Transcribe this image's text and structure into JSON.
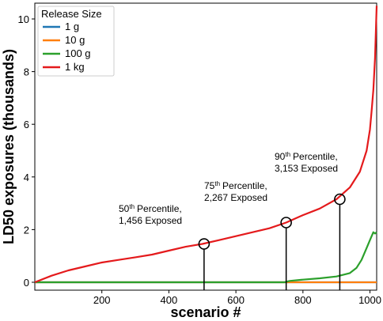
{
  "chart_data": {
    "type": "line",
    "title": "",
    "xlabel": "scenario #",
    "ylabel": "LD50 exposures (thousands)",
    "xlim": [
      0,
      1020
    ],
    "ylim": [
      -0.3,
      10.6
    ],
    "x_ticks": [
      200,
      400,
      600,
      800,
      1000
    ],
    "x_tick_labels": [
      "200",
      "400",
      "600",
      "800",
      "1000"
    ],
    "y_ticks": [
      0,
      2,
      4,
      6,
      8,
      10
    ],
    "y_tick_labels": [
      "0",
      "2",
      "4",
      "6",
      "8",
      "10"
    ],
    "grid": false,
    "legend": {
      "title": "Release Size",
      "placement": "top-left"
    },
    "series": [
      {
        "name": "1 g",
        "color": "#1f77b4",
        "x": [
          0,
          1020
        ],
        "y": [
          0,
          0
        ]
      },
      {
        "name": "10 g",
        "color": "#ff7f0e",
        "x": [
          0,
          1020
        ],
        "y": [
          0,
          0
        ]
      },
      {
        "name": "100 g",
        "color": "#2ca02c",
        "x": [
          0,
          745,
          760,
          800,
          850,
          900,
          940,
          960,
          975,
          990,
          1000,
          1010,
          1015,
          1020
        ],
        "y": [
          0,
          0,
          0.05,
          0.1,
          0.15,
          0.22,
          0.35,
          0.55,
          0.85,
          1.3,
          1.6,
          1.9,
          1.85,
          1.9
        ]
      },
      {
        "name": "1 kg",
        "color": "#e41a1c",
        "x": [
          0,
          50,
          100,
          150,
          200,
          250,
          300,
          350,
          400,
          450,
          500,
          550,
          600,
          650,
          700,
          750,
          800,
          850,
          900,
          940,
          970,
          990,
          1000,
          1005,
          1010,
          1015,
          1020
        ],
        "y": [
          0,
          0.25,
          0.45,
          0.6,
          0.75,
          0.85,
          0.95,
          1.05,
          1.2,
          1.35,
          1.456,
          1.6,
          1.75,
          1.9,
          2.05,
          2.267,
          2.55,
          2.8,
          3.153,
          3.6,
          4.2,
          5.0,
          5.8,
          6.5,
          7.3,
          8.5,
          10.5
        ]
      }
    ],
    "annotations": [
      {
        "x": 505,
        "y": 1.456,
        "percentile": "50",
        "suffix": "th",
        "label": "Percentile,",
        "value_text": "1,456 Exposed"
      },
      {
        "x": 750,
        "y": 2.267,
        "percentile": "75",
        "suffix": "th",
        "label": "Percentile,",
        "value_text": "2,267 Exposed"
      },
      {
        "x": 910,
        "y": 3.153,
        "percentile": "90",
        "suffix": "th",
        "label": "Percentile,",
        "value_text": "3,153 Exposed"
      }
    ]
  }
}
